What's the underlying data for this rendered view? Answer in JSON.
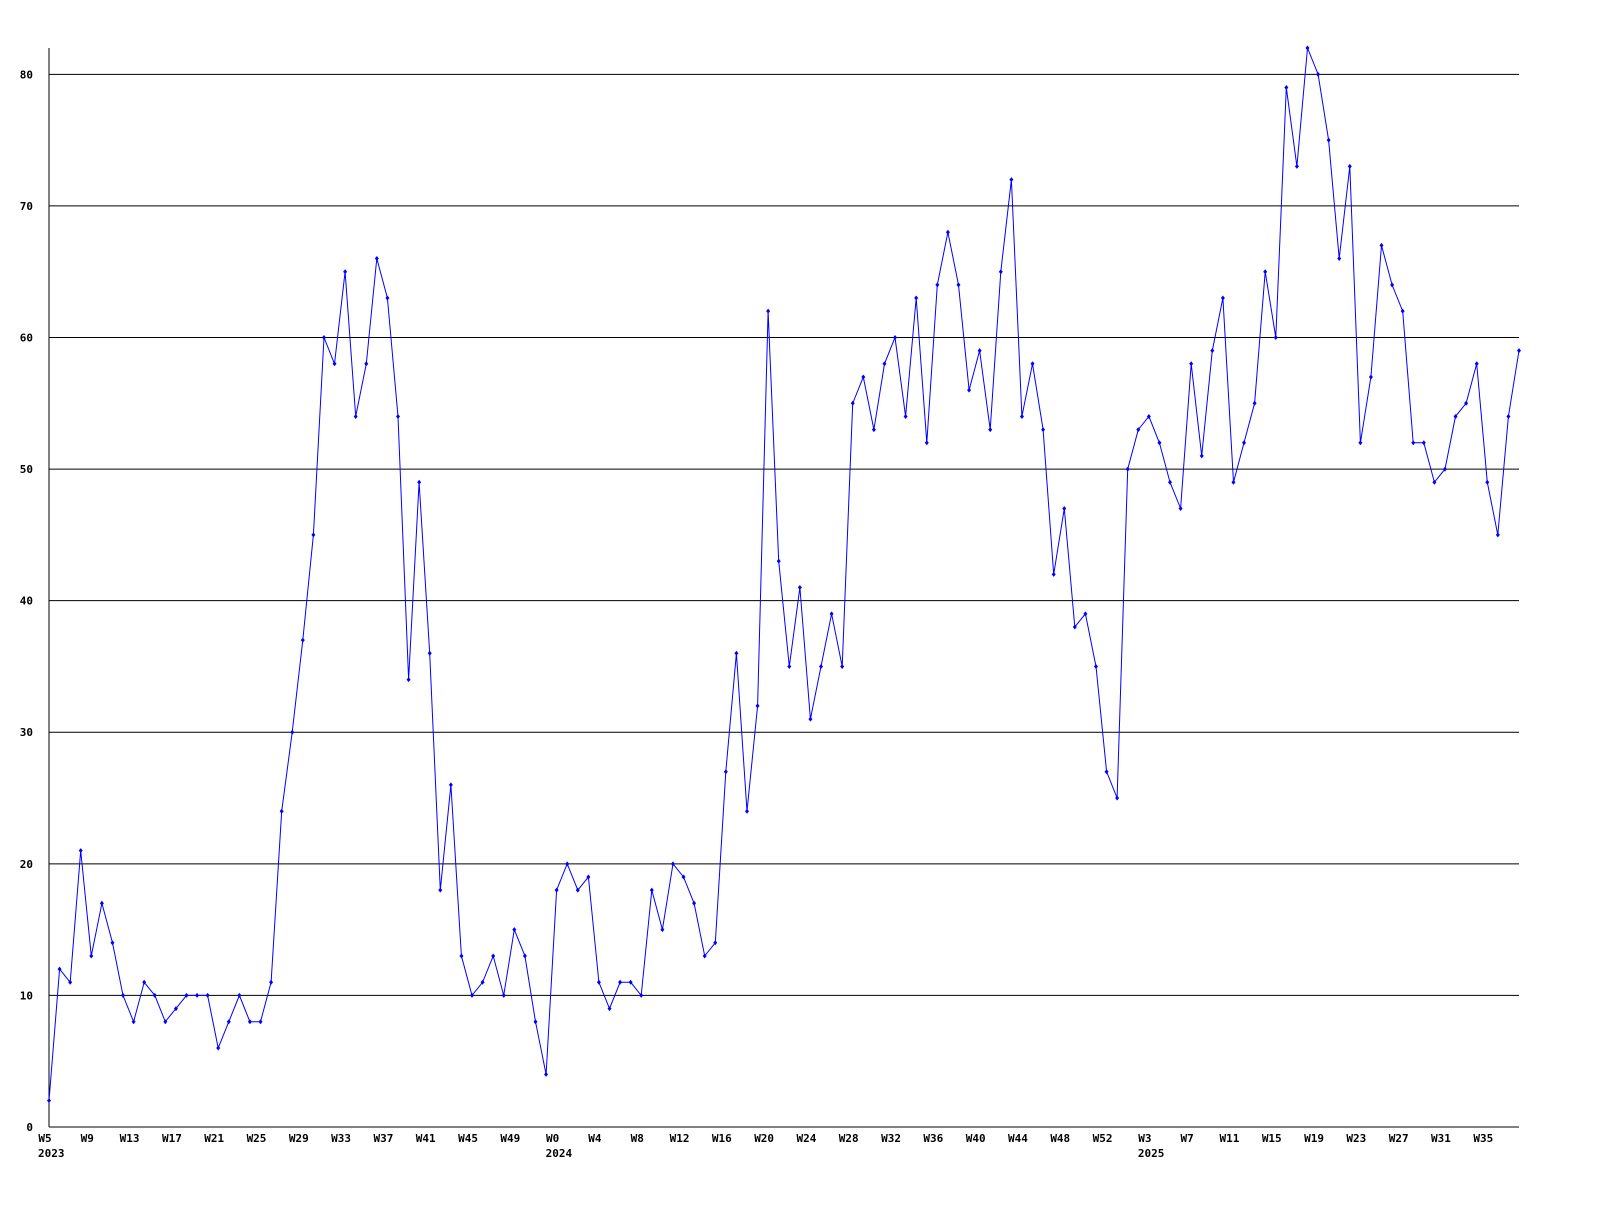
{
  "chart_data": {
    "type": "line",
    "categories": [
      "W5",
      null,
      null,
      null,
      "W9",
      null,
      null,
      null,
      "W13",
      null,
      null,
      null,
      "W17",
      null,
      null,
      null,
      "W21",
      null,
      null,
      null,
      "W25",
      null,
      null,
      null,
      "W29",
      null,
      null,
      null,
      "W33",
      null,
      null,
      null,
      "W37",
      null,
      null,
      null,
      "W41",
      null,
      null,
      null,
      "W45",
      null,
      null,
      null,
      "W49",
      null,
      null,
      null,
      "W0",
      null,
      null,
      null,
      "W4",
      null,
      null,
      null,
      "W8",
      null,
      null,
      null,
      "W12",
      null,
      null,
      null,
      "W16",
      null,
      null,
      null,
      "W20",
      null,
      null,
      null,
      "W24",
      null,
      null,
      null,
      "W28",
      null,
      null,
      null,
      "W32",
      null,
      null,
      null,
      "W36",
      null,
      null,
      null,
      "W40",
      null,
      null,
      null,
      "W44",
      null,
      null,
      null,
      "W48",
      null,
      null,
      null,
      "W52",
      null,
      null,
      null,
      "W3",
      null,
      null,
      null,
      "W7",
      null,
      null,
      null,
      "W11",
      null,
      null,
      null,
      "W15",
      null,
      null,
      null,
      "W19",
      null,
      null,
      null,
      "W23",
      null,
      null,
      null,
      "W27",
      null,
      null,
      null,
      "W31",
      null,
      null,
      null,
      "W35",
      null,
      null,
      null
    ],
    "category_years": [
      "2023",
      null,
      null,
      null,
      null,
      null,
      null,
      null,
      null,
      null,
      null,
      null,
      null,
      null,
      null,
      null,
      null,
      null,
      null,
      null,
      null,
      null,
      null,
      null,
      null,
      null,
      null,
      null,
      null,
      null,
      null,
      null,
      null,
      null,
      null,
      null,
      null,
      null,
      null,
      null,
      null,
      null,
      null,
      null,
      null,
      null,
      null,
      null,
      "2024",
      null,
      null,
      null,
      null,
      null,
      null,
      null,
      null,
      null,
      null,
      null,
      null,
      null,
      null,
      null,
      null,
      null,
      null,
      null,
      null,
      null,
      null,
      null,
      null,
      null,
      null,
      null,
      null,
      null,
      null,
      null,
      null,
      null,
      null,
      null,
      null,
      null,
      null,
      null,
      null,
      null,
      null,
      null,
      null,
      null,
      null,
      null,
      null,
      null,
      null,
      null,
      null,
      null,
      null,
      null,
      "2025",
      null,
      null,
      null,
      null,
      null,
      null,
      null,
      null,
      null,
      null,
      null,
      null,
      null,
      null,
      null,
      null,
      null,
      null,
      null,
      null,
      null,
      null,
      null,
      null,
      null,
      null,
      null,
      null,
      null,
      null,
      null,
      null,
      null,
      null,
      null
    ],
    "series": [
      {
        "color": "#0000ff",
        "values": [
          2,
          12,
          11,
          21,
          13,
          17,
          14,
          10,
          8,
          11,
          10,
          8,
          9,
          10,
          10,
          10,
          6,
          8,
          10,
          8,
          8,
          11,
          24,
          30,
          37,
          45,
          60,
          58,
          65,
          54,
          58,
          66,
          63,
          54,
          34,
          49,
          36,
          18,
          26,
          13,
          10,
          11,
          13,
          10,
          15,
          13,
          8,
          4,
          18,
          20,
          18,
          19,
          11,
          9,
          11,
          11,
          10,
          18,
          15,
          20,
          19,
          17,
          13,
          14,
          27,
          36,
          24,
          32,
          62,
          43,
          35,
          41,
          31,
          35,
          39,
          35,
          55,
          57,
          53,
          58,
          60,
          54,
          63,
          52,
          64,
          68,
          64,
          56,
          59,
          53,
          65,
          72,
          54,
          58,
          53,
          42,
          47,
          38,
          39,
          35,
          27,
          25,
          50,
          53,
          54,
          52,
          49,
          47,
          58,
          51,
          59,
          63,
          49,
          52,
          55,
          65,
          60,
          79,
          73,
          82,
          80,
          75,
          66,
          73,
          52,
          57,
          67,
          64,
          62,
          52,
          52,
          49,
          50,
          54,
          55,
          58,
          49,
          45,
          54,
          59
        ]
      }
    ],
    "ylim": [
      0,
      82
    ],
    "yticks": [
      0,
      10,
      20,
      30,
      40,
      50,
      60,
      70,
      80
    ],
    "grid": true
  }
}
